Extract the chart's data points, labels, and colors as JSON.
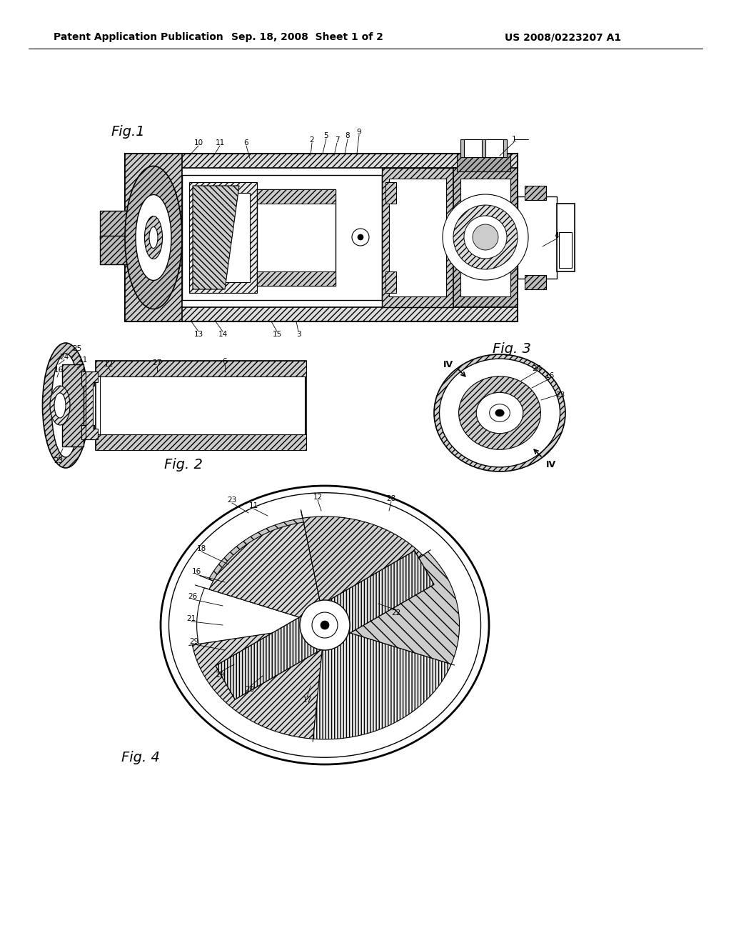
{
  "bg": "#ffffff",
  "header_left": "Patent Application Publication",
  "header_center": "Sep. 18, 2008  Sheet 1 of 2",
  "header_right": "US 2008/0223207 A1",
  "fig1_label": "Fig.1",
  "fig2_label": "Fig. 2",
  "fig3_label": "Fig. 3",
  "fig4_label": "Fig. 4",
  "tc": "#000000"
}
